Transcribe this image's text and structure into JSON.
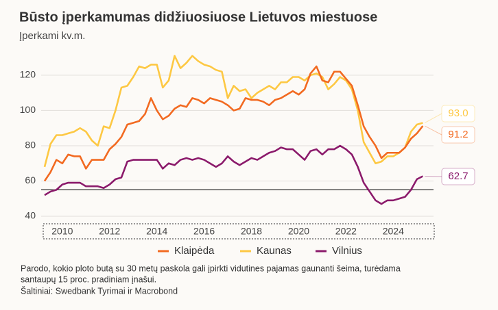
{
  "chart_data": {
    "type": "line",
    "title": "Būsto įperkamumas didžiuosiuose Lietuvos miestuose",
    "subtitle": "Įperkami kv.m.",
    "notes": [
      "Parodo, kokio ploto butą su 30 metų paskola gali įpirkti vidutines pajamas gaunanti šeima, turėdama",
      "santaupų 15 proc. pradiniam įnašui.",
      "Šaltiniai: Swedbank Tyrimai ir Macrobond"
    ],
    "x": [
      2009.25,
      2009.5,
      2009.75,
      2010,
      2010.25,
      2010.5,
      2010.75,
      2011,
      2011.25,
      2011.5,
      2011.75,
      2012,
      2012.25,
      2012.5,
      2012.75,
      2013,
      2013.25,
      2013.5,
      2013.75,
      2014,
      2014.25,
      2014.5,
      2014.75,
      2015,
      2015.25,
      2015.5,
      2015.75,
      2016,
      2016.25,
      2016.5,
      2016.75,
      2017,
      2017.25,
      2017.5,
      2017.75,
      2018,
      2018.25,
      2018.5,
      2018.75,
      2019,
      2019.25,
      2019.5,
      2019.75,
      2020,
      2020.25,
      2020.5,
      2020.75,
      2021,
      2021.25,
      2021.5,
      2021.75,
      2022,
      2022.25,
      2022.5,
      2022.75,
      2023,
      2023.25,
      2023.5,
      2023.75,
      2024,
      2024.25,
      2024.5,
      2024.75,
      2025,
      2025.25
    ],
    "series": [
      {
        "name": "Klaipėda",
        "color": "#f26a21",
        "values": [
          60,
          65,
          72,
          70,
          75,
          74,
          74,
          67,
          72,
          72,
          72,
          78,
          81,
          85,
          92,
          93,
          94,
          98,
          107,
          100,
          95,
          97,
          101,
          103,
          102,
          107,
          106,
          104,
          107,
          106,
          105,
          103,
          100,
          101,
          107,
          106,
          106,
          105,
          103,
          106,
          107,
          109,
          111,
          109,
          112,
          121,
          125,
          117,
          116,
          122,
          122,
          118,
          114,
          103,
          91,
          85,
          80,
          73,
          76,
          76,
          76,
          79,
          84,
          87,
          91.2
        ]
      },
      {
        "name": "Kaunas",
        "color": "#fdc843",
        "values": [
          68,
          81,
          86,
          86,
          87,
          88,
          90,
          88,
          83,
          80,
          91,
          90,
          100,
          113,
          114,
          119,
          125,
          124,
          126,
          126,
          113,
          117,
          131,
          124,
          127,
          131,
          128,
          126,
          125,
          123,
          122,
          107,
          114,
          111,
          112,
          107,
          110,
          112,
          114,
          112,
          116,
          116,
          119,
          119,
          117,
          120,
          121,
          119,
          112,
          115,
          119,
          117,
          112,
          100,
          82,
          76,
          70,
          71,
          74,
          74,
          76,
          79,
          88,
          92,
          93.0
        ],
        "value_labels": [
          null,
          null,
          null,
          null,
          null,
          null,
          null,
          null,
          null,
          null,
          null,
          null,
          null,
          null,
          null,
          null,
          null,
          null,
          null,
          null,
          null,
          null,
          null,
          null,
          null,
          null,
          null,
          null,
          null,
          null,
          null,
          null,
          null,
          null,
          null,
          null,
          null,
          null,
          null,
          null,
          null,
          null,
          null,
          null,
          null,
          null,
          null,
          null,
          null,
          null,
          null,
          null,
          null,
          null,
          null,
          null,
          null,
          null,
          null,
          null,
          null,
          null,
          null,
          null,
          "93.0"
        ]
      },
      {
        "name": "Vilnius",
        "color": "#8b1a6b",
        "values": [
          52,
          54,
          55,
          58,
          59,
          59,
          59,
          57,
          57,
          57,
          56,
          58,
          61,
          62,
          71,
          72,
          72,
          72,
          72,
          72,
          67,
          70,
          69,
          72,
          73,
          72,
          73,
          72,
          70,
          68,
          70,
          74,
          71,
          69,
          71,
          73,
          72,
          74,
          76,
          77,
          79,
          78,
          78,
          75,
          72,
          77,
          78,
          75,
          78,
          78,
          80,
          78,
          75,
          68,
          59,
          54,
          49,
          47,
          49,
          49,
          50,
          51,
          55,
          61,
          62.7
        ]
      }
    ],
    "xlim": [
      2009.25,
      2025.5
    ],
    "xticks": [
      2010,
      2012,
      2014,
      2016,
      2018,
      2020,
      2022,
      2024
    ],
    "ylim": [
      40,
      132
    ],
    "yticks": [
      40,
      60,
      80,
      100,
      120
    ],
    "grid": true,
    "reference_line": 55,
    "legend": "bottom"
  }
}
